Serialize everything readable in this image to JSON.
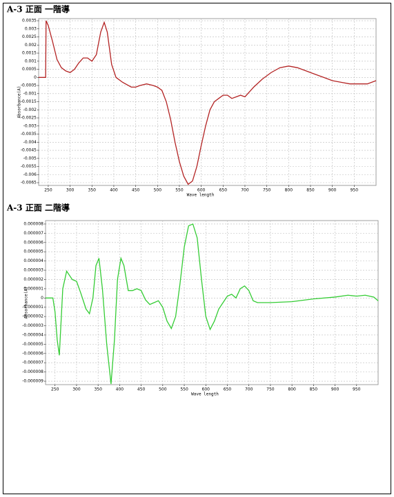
{
  "chart_data": [
    {
      "type": "line",
      "title": "A-3 正面 一階導",
      "x_label": "Wave length",
      "y_label": "Absorbance(A)",
      "color": "#b32222",
      "grid": true,
      "xlim": [
        228,
        1000
      ],
      "ylim": [
        -0.00667,
        0.00363
      ],
      "xticks": [
        250,
        300,
        350,
        400,
        450,
        500,
        550,
        600,
        650,
        700,
        750,
        800,
        850,
        900,
        950
      ],
      "yticks": [
        0.0035,
        0.003,
        0.0025,
        0.002,
        0.0015,
        0.001,
        0.0005,
        0,
        -0.0005,
        -0.001,
        -0.0015,
        -0.002,
        -0.0025,
        -0.003,
        -0.0035,
        -0.004,
        -0.0045,
        -0.005,
        -0.0055,
        -0.006,
        -0.0065
      ],
      "x": [
        228,
        244,
        245,
        250,
        260,
        270,
        280,
        290,
        300,
        310,
        320,
        330,
        340,
        350,
        360,
        370,
        378,
        385,
        395,
        405,
        420,
        440,
        450,
        460,
        475,
        490,
        500,
        510,
        520,
        530,
        540,
        550,
        560,
        570,
        580,
        590,
        600,
        610,
        620,
        630,
        640,
        650,
        660,
        670,
        680,
        690,
        700,
        710,
        720,
        740,
        760,
        780,
        800,
        820,
        840,
        860,
        880,
        900,
        920,
        940,
        960,
        980,
        1000
      ],
      "values": [
        0,
        0,
        0.0035,
        0.0032,
        0.0022,
        0.0011,
        0.0006,
        0.0004,
        0.0003,
        0.0005,
        0.0009,
        0.0012,
        0.0012,
        0.001,
        0.0014,
        0.0028,
        0.0034,
        0.0028,
        0.0008,
        0,
        -0.0003,
        -0.0006,
        -0.0006,
        -0.0005,
        -0.0004,
        -0.0005,
        -0.0006,
        -0.0008,
        -0.0015,
        -0.0026,
        -0.004,
        -0.0052,
        -0.0061,
        -0.0066,
        -0.0064,
        -0.0055,
        -0.0042,
        -0.003,
        -0.002,
        -0.0015,
        -0.0013,
        -0.0011,
        -0.0011,
        -0.0013,
        -0.0012,
        -0.0011,
        -0.0012,
        -0.0009,
        -0.0006,
        -0.0001,
        0.0003,
        0.0006,
        0.0007,
        0.0006,
        0.0004,
        0.0002,
        0,
        -0.0002,
        -0.0003,
        -0.0004,
        -0.0004,
        -0.0004,
        -0.0002
      ]
    },
    {
      "type": "line",
      "title": "A-3 正面 二階導",
      "x_label": "Wave length",
      "y_label": "Absorbance(A)",
      "color": "#33cc33",
      "grid": true,
      "xlim": [
        228,
        1000
      ],
      "ylim": [
        -9.37e-06,
        8.37e-06
      ],
      "xticks": [
        250,
        300,
        350,
        400,
        450,
        500,
        550,
        600,
        650,
        700,
        750,
        800,
        850,
        900,
        950
      ],
      "yticks": [
        8e-06,
        7e-06,
        6e-06,
        5e-06,
        4e-06,
        3e-06,
        2e-06,
        1e-06,
        0,
        -1e-06,
        -2e-06,
        -3e-06,
        -4e-06,
        -5e-06,
        -6e-06,
        -7e-06,
        -8e-06,
        -9e-06
      ],
      "x": [
        228,
        245,
        250,
        255,
        260,
        268,
        277,
        290,
        300,
        310,
        322,
        330,
        338,
        345,
        352,
        360,
        370,
        380,
        388,
        395,
        403,
        410,
        420,
        430,
        440,
        450,
        460,
        470,
        480,
        490,
        500,
        510,
        520,
        530,
        540,
        550,
        560,
        570,
        580,
        590,
        600,
        610,
        620,
        630,
        640,
        650,
        660,
        670,
        680,
        690,
        700,
        710,
        720,
        750,
        800,
        850,
        900,
        930,
        950,
        970,
        990,
        1000
      ],
      "values": [
        0,
        0,
        -1.5e-06,
        -4.5e-06,
        -6.2e-06,
        1e-06,
        2.9e-06,
        2e-06,
        1.8e-06,
        5e-07,
        -1.2e-06,
        -1.7e-06,
        0,
        3.5e-06,
        4.3e-06,
        1e-06,
        -5e-06,
        -9.3e-06,
        -4.5e-06,
        2e-06,
        4.3e-06,
        3.5e-06,
        8e-07,
        8e-07,
        1e-06,
        8e-07,
        -2e-07,
        -7e-07,
        -5e-07,
        -3e-07,
        -1e-06,
        -2.5e-06,
        -3.3e-06,
        -2e-06,
        1.5e-06,
        5.5e-06,
        7.8e-06,
        8e-06,
        6.5e-06,
        2e-06,
        -2e-06,
        -3.4e-06,
        -2.5e-06,
        -1.2e-06,
        -5e-07,
        2e-07,
        4e-07,
        0,
        1e-06,
        1.3e-06,
        8e-07,
        -3e-07,
        -5e-07,
        -5e-07,
        -4e-07,
        -1e-07,
        1e-07,
        3e-07,
        2e-07,
        3e-07,
        1e-07,
        -3e-07
      ]
    }
  ]
}
